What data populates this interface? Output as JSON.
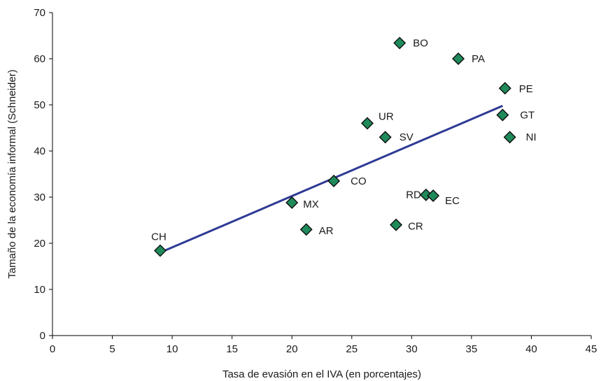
{
  "chart_data": {
    "type": "scatter",
    "title": "",
    "xlabel": "Tasa de evasión en el IVA (en porcentajes)",
    "ylabel": "Tamaño de la economía informal (Schneider)",
    "xlim": [
      0,
      45
    ],
    "ylim": [
      0,
      70
    ],
    "xticks": [
      0,
      5,
      10,
      15,
      20,
      25,
      30,
      35,
      40,
      45
    ],
    "yticks": [
      0,
      10,
      20,
      30,
      40,
      50,
      60,
      70
    ],
    "grid": false,
    "legend": "none",
    "marker": "diamond",
    "colors": {
      "marker_fill": "#1f8a5a",
      "marker_stroke": "#0d0d0d",
      "trendline": "#2e3a94",
      "axis": "#000000"
    },
    "points": [
      {
        "label": "CH",
        "x": 9.0,
        "y": 18.4
      },
      {
        "label": "MX",
        "x": 20.0,
        "y": 28.8
      },
      {
        "label": "AR",
        "x": 21.2,
        "y": 23.0
      },
      {
        "label": "CO",
        "x": 23.5,
        "y": 33.5
      },
      {
        "label": "UR",
        "x": 26.3,
        "y": 46.0
      },
      {
        "label": "SV",
        "x": 27.8,
        "y": 43.0
      },
      {
        "label": "CR",
        "x": 28.7,
        "y": 24.0
      },
      {
        "label": "BO",
        "x": 29.0,
        "y": 63.4
      },
      {
        "label": "RD",
        "x": 31.2,
        "y": 30.5
      },
      {
        "label": "EC",
        "x": 31.8,
        "y": 30.3
      },
      {
        "label": "PA",
        "x": 33.9,
        "y": 60.0
      },
      {
        "label": "GT",
        "x": 37.6,
        "y": 47.8
      },
      {
        "label": "PE",
        "x": 37.8,
        "y": 53.6
      },
      {
        "label": "NI",
        "x": 38.2,
        "y": 43.0
      }
    ],
    "trendline": {
      "x": [
        9.0,
        37.6
      ],
      "y": [
        18.0,
        49.8
      ]
    }
  }
}
